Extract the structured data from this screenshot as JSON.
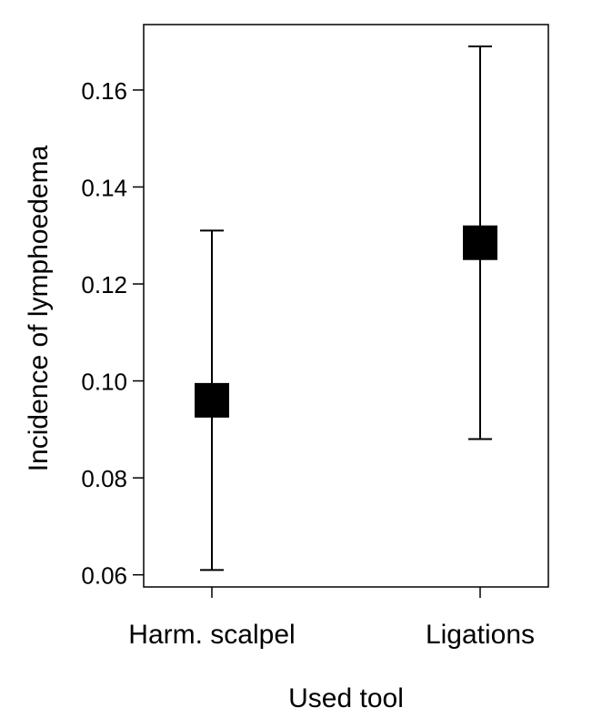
{
  "chart_data": {
    "type": "scatter",
    "subtype": "point-with-error-bars",
    "title": "",
    "xlabel": "Used tool",
    "ylabel": "Incidence of lymphoedema",
    "categories": [
      "Harm. scalpel",
      "Ligations"
    ],
    "points": [
      {
        "category": "Harm. scalpel",
        "value": 0.096,
        "lower": 0.061,
        "upper": 0.131
      },
      {
        "category": "Ligations",
        "value": 0.1285,
        "lower": 0.088,
        "upper": 0.169
      }
    ],
    "ylim": [
      0.0575,
      0.1735
    ],
    "yticks": [
      0.06,
      0.08,
      0.1,
      0.12,
      0.14,
      0.16
    ],
    "ytick_labels": [
      "0.06",
      "0.08",
      "0.10",
      "0.12",
      "0.14",
      "0.16"
    ],
    "grid": false,
    "legend": "none",
    "colors": {
      "marker": "#000000",
      "axis": "#000000",
      "background": "#ffffff"
    }
  }
}
